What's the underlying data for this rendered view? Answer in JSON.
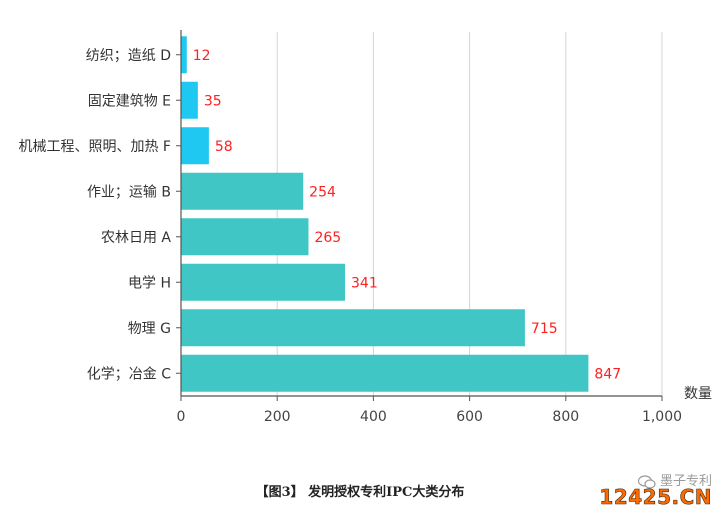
{
  "chart_data": {
    "type": "bar",
    "orientation": "horizontal",
    "categories": [
      "纺织；造纸 D",
      "固定建筑物 E",
      "机械工程、照明、加热 F",
      "作业；运输 B",
      "农林日用 A",
      "电学 H",
      "物理 G",
      "化学；冶金 C"
    ],
    "values": [
      12,
      35,
      58,
      254,
      265,
      341,
      715,
      847
    ],
    "bar_colors": [
      "#1ec8f0",
      "#1ec8f0",
      "#1ec8f0",
      "#3fc6c5",
      "#3fc6c5",
      "#3fc6c5",
      "#3fc6c5",
      "#3fc6c5"
    ],
    "label_color": "#ff2020",
    "xlabel": "数量",
    "xlim": [
      0,
      1000
    ],
    "xticks": [
      0,
      200,
      400,
      600,
      800,
      1000
    ],
    "xtick_labels": [
      "0",
      "200",
      "400",
      "600",
      "800",
      "1,000"
    ],
    "grid": "vertical"
  },
  "caption": "【图3】 发明授权专利IPC大类分布",
  "watermark": {
    "brand": "墨子专利",
    "site": "12425.CN"
  }
}
